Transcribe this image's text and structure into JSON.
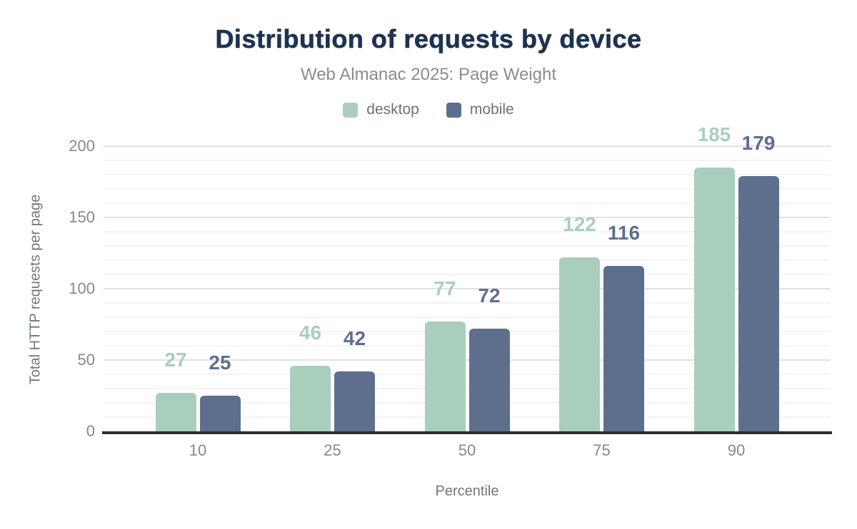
{
  "header": {
    "title": "Distribution of requests by device",
    "subtitle": "Web Almanac 2025: Page Weight"
  },
  "chart_data": {
    "type": "bar",
    "title": "Distribution of requests by device",
    "subtitle": "Web Almanac 2025: Page Weight",
    "categories": [
      "10",
      "25",
      "50",
      "75",
      "90"
    ],
    "series": [
      {
        "name": "desktop",
        "color": "#a9cebd",
        "values": [
          27,
          46,
          77,
          122,
          185
        ]
      },
      {
        "name": "mobile",
        "color": "#5e6f8d",
        "values": [
          25,
          42,
          72,
          116,
          179
        ]
      }
    ],
    "xlabel": "Percentile",
    "ylabel": "Total HTTP requests per page",
    "ylim": [
      0,
      200
    ],
    "yticks": [
      0,
      50,
      100,
      150,
      200
    ],
    "grid": {
      "orientation": "horizontal",
      "minor_step": 10,
      "major_step": 50,
      "minor_on": true,
      "major_on": true
    },
    "legend_position": "top",
    "value_labels": true
  },
  "colors": {
    "title": "#1e3350",
    "subtitle": "#888c95",
    "legend_text": "#6a707c",
    "tick_text": "#84888f",
    "axis_title_text": "#6f7580",
    "axis_line": "#2e2e2e",
    "gridline_minor": "#f3f3f5",
    "gridline_major": "#e2e2e6",
    "background": "#ffffff",
    "desktop_series": "#a9cebd",
    "mobile_series": "#5e6f8d"
  }
}
